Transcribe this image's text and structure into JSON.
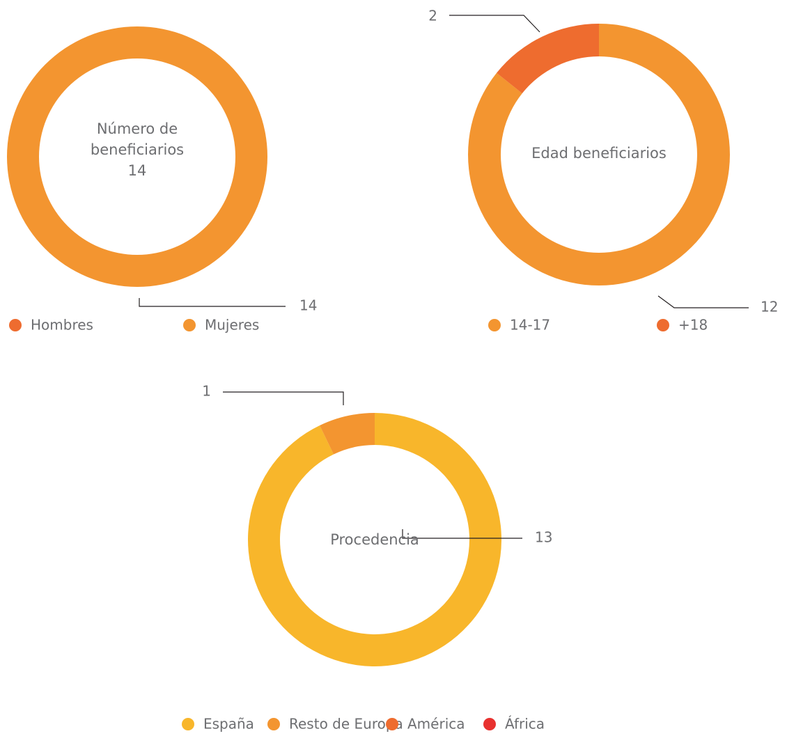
{
  "chart_data": [
    {
      "type": "pie",
      "title": "Número de beneficiarios",
      "center_value": 14,
      "categories": [
        "Hombres",
        "Mujeres"
      ],
      "values": [
        0,
        14
      ],
      "colors": [
        "#ee6c2f",
        "#f39530"
      ]
    },
    {
      "type": "pie",
      "title": "Edad beneficiarios",
      "categories": [
        "14-17",
        "+18"
      ],
      "values": [
        12,
        2
      ],
      "colors": [
        "#f39530",
        "#ee6c2f"
      ]
    },
    {
      "type": "pie",
      "title": "Procedencia",
      "categories": [
        "España",
        "Resto de Europa",
        "América",
        "África"
      ],
      "values": [
        13,
        1,
        0,
        0
      ],
      "colors": [
        "#f8b62b",
        "#f39530",
        "#ee6c2f",
        "#e8312f"
      ]
    }
  ]
}
